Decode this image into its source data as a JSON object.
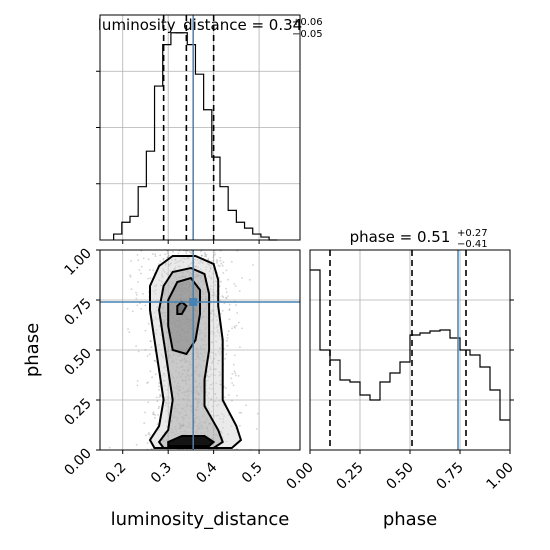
{
  "chart_data": [
    {
      "type": "histogram",
      "panel": "luminosity_distance-marginal",
      "title_main": "luminosity_distance = 0.34",
      "title_sup": "+0.06",
      "title_sub": "−0.05",
      "xlim": [
        0.15,
        0.59
      ],
      "bin_edges": [
        0.18,
        0.198,
        0.216,
        0.234,
        0.252,
        0.27,
        0.288,
        0.306,
        0.324,
        0.342,
        0.36,
        0.378,
        0.396,
        0.414,
        0.432,
        0.45,
        0.468,
        0.486,
        0.504,
        0.522,
        0.54
      ],
      "counts": [
        0.1,
        0.3,
        0.4,
        0.9,
        1.5,
        2.6,
        3.3,
        3.5,
        3.5,
        3.3,
        2.8,
        2.2,
        1.4,
        0.9,
        0.5,
        0.3,
        0.2,
        0.1,
        0.05,
        0.0
      ],
      "count_max": 3.8,
      "quantiles": [
        0.29,
        0.34,
        0.4
      ],
      "truth": 0.355,
      "yticks_visible": false
    },
    {
      "type": "scatter-density",
      "panel": "luminosity_distance-vs-phase",
      "xlabel": "luminosity_distance",
      "ylabel": "phase",
      "xlim": [
        0.15,
        0.59
      ],
      "ylim": [
        0.0,
        1.0
      ],
      "xticks": [
        "0.2",
        "0.3",
        "0.4",
        "0.5"
      ],
      "xtick_values": [
        0.2,
        0.3,
        0.4,
        0.5
      ],
      "yticks": [
        "0.00",
        "0.25",
        "0.50",
        "0.75",
        "1.00"
      ],
      "ytick_values": [
        0.0,
        0.25,
        0.5,
        0.75,
        1.0
      ],
      "contours": [
        [
          [
            0.27,
            0.01
          ],
          [
            0.26,
            0.05
          ],
          [
            0.28,
            0.12
          ],
          [
            0.29,
            0.25
          ],
          [
            0.28,
            0.4
          ],
          [
            0.27,
            0.55
          ],
          [
            0.26,
            0.7
          ],
          [
            0.26,
            0.82
          ],
          [
            0.28,
            0.92
          ],
          [
            0.31,
            0.97
          ],
          [
            0.36,
            0.97
          ],
          [
            0.4,
            0.93
          ],
          [
            0.41,
            0.85
          ],
          [
            0.41,
            0.72
          ],
          [
            0.42,
            0.55
          ],
          [
            0.42,
            0.4
          ],
          [
            0.42,
            0.25
          ],
          [
            0.45,
            0.12
          ],
          [
            0.46,
            0.05
          ],
          [
            0.44,
            0.01
          ]
        ],
        [
          [
            0.29,
            0.01
          ],
          [
            0.28,
            0.04
          ],
          [
            0.3,
            0.1
          ],
          [
            0.31,
            0.25
          ],
          [
            0.3,
            0.4
          ],
          [
            0.29,
            0.55
          ],
          [
            0.28,
            0.7
          ],
          [
            0.29,
            0.82
          ],
          [
            0.31,
            0.89
          ],
          [
            0.35,
            0.91
          ],
          [
            0.38,
            0.88
          ],
          [
            0.39,
            0.78
          ],
          [
            0.39,
            0.65
          ],
          [
            0.39,
            0.5
          ],
          [
            0.38,
            0.35
          ],
          [
            0.38,
            0.22
          ],
          [
            0.41,
            0.1
          ],
          [
            0.42,
            0.04
          ],
          [
            0.4,
            0.01
          ]
        ],
        [
          [
            0.31,
            0.5
          ],
          [
            0.3,
            0.62
          ],
          [
            0.3,
            0.75
          ],
          [
            0.32,
            0.84
          ],
          [
            0.35,
            0.86
          ],
          [
            0.37,
            0.8
          ],
          [
            0.37,
            0.68
          ],
          [
            0.36,
            0.55
          ],
          [
            0.34,
            0.48
          ]
        ],
        [
          [
            0.32,
            0.68
          ],
          [
            0.32,
            0.72
          ],
          [
            0.33,
            0.74
          ],
          [
            0.34,
            0.72
          ],
          [
            0.33,
            0.68
          ]
        ],
        [
          [
            0.3,
            0.02
          ],
          [
            0.3,
            0.04
          ],
          [
            0.33,
            0.07
          ],
          [
            0.38,
            0.07
          ],
          [
            0.4,
            0.04
          ],
          [
            0.39,
            0.02
          ]
        ]
      ],
      "truth": [
        0.355,
        0.74
      ]
    },
    {
      "type": "histogram",
      "panel": "phase-marginal",
      "title_main": "phase = 0.51",
      "title_sup": "+0.27",
      "title_sub": "−0.41",
      "xlabel": "phase",
      "xlim": [
        0.0,
        1.0
      ],
      "xticks": [
        "0.00",
        "0.25",
        "0.50",
        "0.75",
        "1.00"
      ],
      "xtick_values": [
        0.0,
        0.25,
        0.5,
        0.75,
        1.0
      ],
      "bin_edges": [
        0.0,
        0.05,
        0.1,
        0.15,
        0.2,
        0.25,
        0.3,
        0.35,
        0.4,
        0.45,
        0.5,
        0.55,
        0.6,
        0.65,
        0.7,
        0.75,
        0.8,
        0.85,
        0.9,
        0.95,
        1.0
      ],
      "counts": [
        1.8,
        1.0,
        0.9,
        0.7,
        0.68,
        0.55,
        0.5,
        0.68,
        0.77,
        0.88,
        1.15,
        1.17,
        1.19,
        1.2,
        1.12,
        1.0,
        0.95,
        0.83,
        0.6,
        0.3
      ],
      "count_max": 2.0,
      "quantiles": [
        0.1,
        0.51,
        0.78
      ],
      "truth": 0.74,
      "yticks_visible": false
    }
  ],
  "colors": {
    "truth": "#4682b4",
    "hist": "#000000",
    "grid": "#b0b0b0",
    "scatter": "#7f7f7f"
  }
}
